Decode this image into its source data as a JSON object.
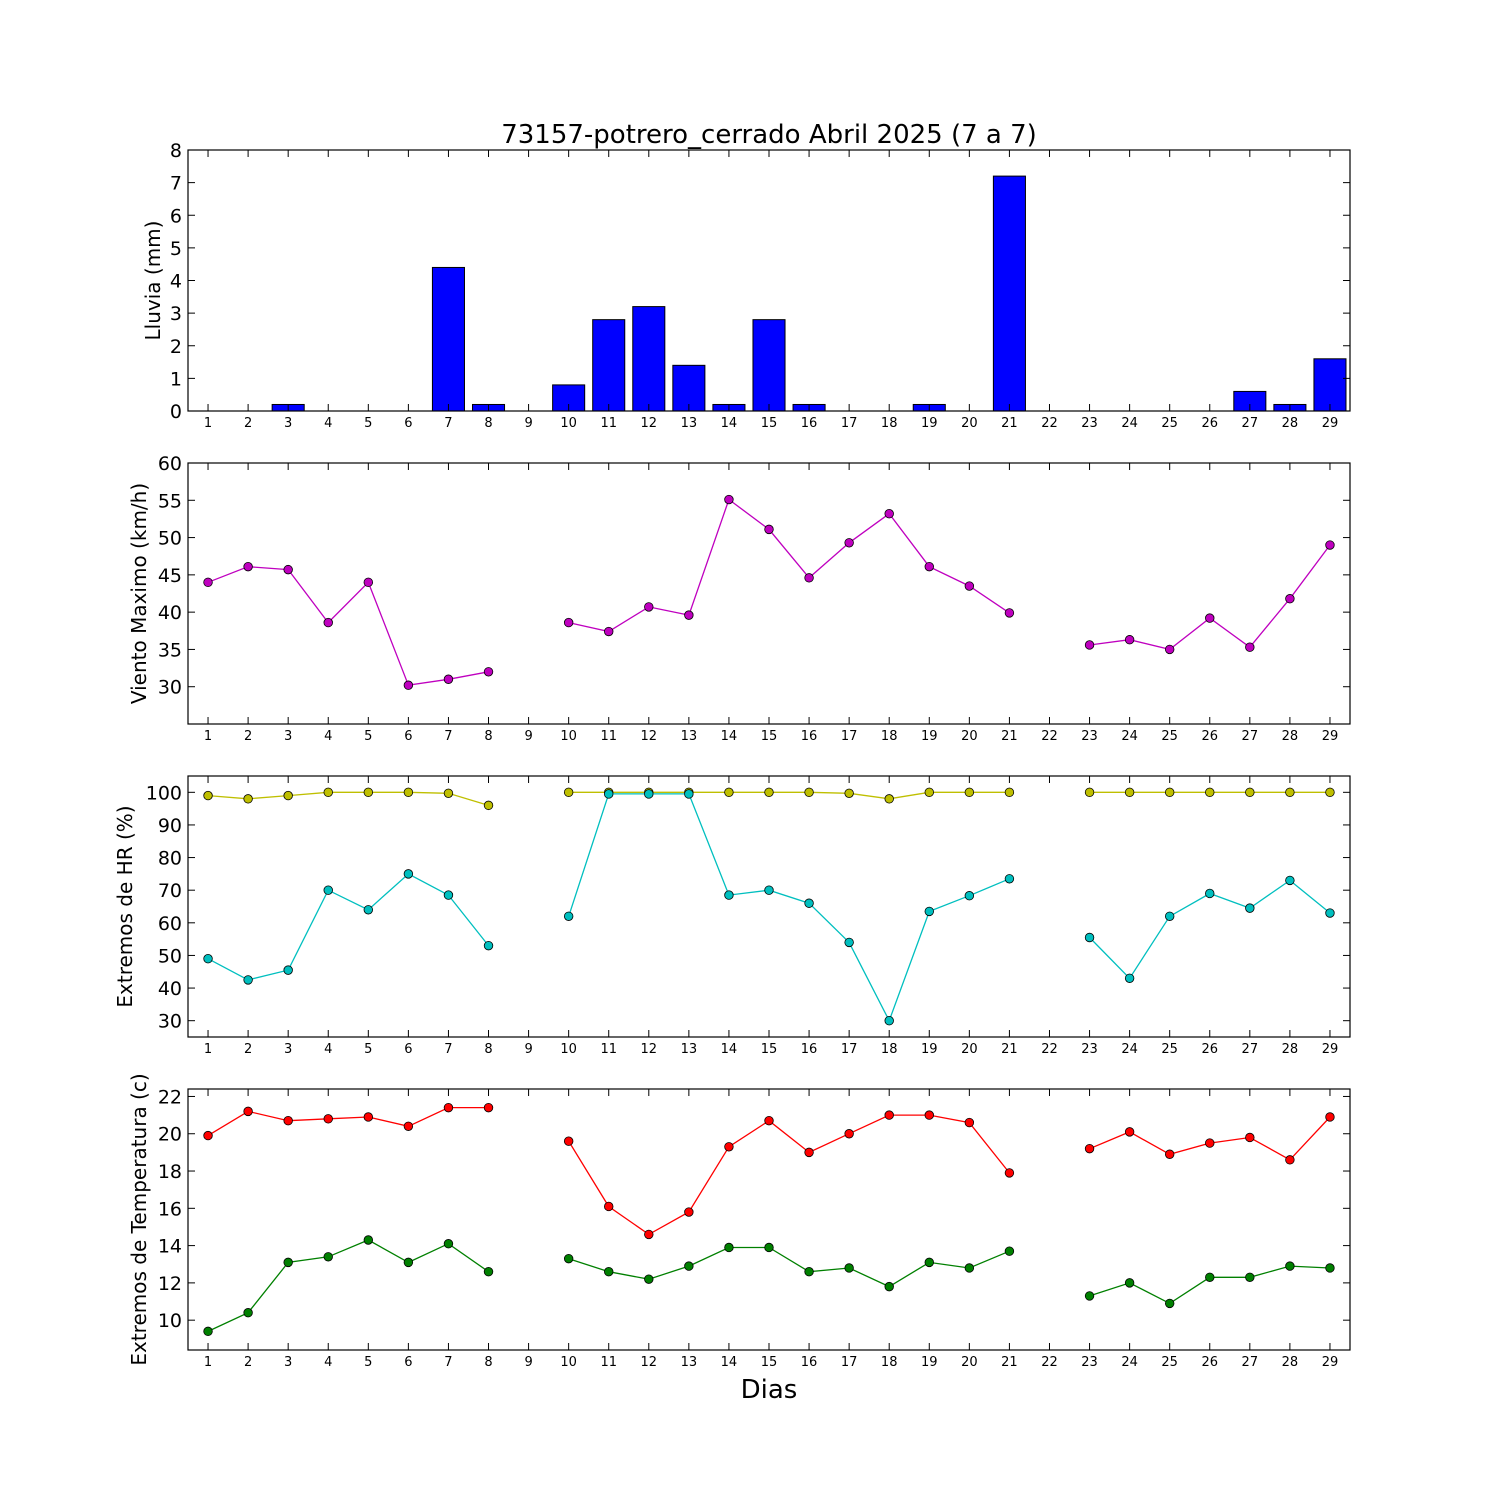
{
  "title": "73157-potrero_cerrado Abril 2025  (7 a 7)",
  "xlabel": "Dias",
  "chart_data": [
    {
      "type": "bar",
      "ylabel": "Lluvia (mm)",
      "x": [
        1,
        2,
        3,
        4,
        5,
        6,
        7,
        8,
        9,
        10,
        11,
        12,
        13,
        14,
        15,
        16,
        17,
        18,
        19,
        20,
        21,
        22,
        23,
        24,
        25,
        26,
        27,
        28,
        29
      ],
      "ylim": [
        0,
        8
      ],
      "yticks": [
        0,
        1,
        2,
        3,
        4,
        5,
        6,
        7,
        8
      ],
      "series": [
        {
          "color": "#0000ff",
          "values": [
            0,
            0,
            0.2,
            0,
            0,
            0,
            4.4,
            0.2,
            0,
            0.8,
            2.8,
            3.2,
            1.4,
            0.2,
            2.8,
            0.2,
            0,
            0,
            0.2,
            0,
            7.2,
            0,
            0,
            0,
            0,
            0,
            0.6,
            0.2,
            1.6
          ]
        }
      ]
    },
    {
      "type": "line",
      "ylabel": "Viento Maximo (km/h)",
      "x": [
        1,
        2,
        3,
        4,
        5,
        6,
        7,
        8,
        9,
        10,
        11,
        12,
        13,
        14,
        15,
        16,
        17,
        18,
        19,
        20,
        21,
        22,
        23,
        24,
        25,
        26,
        27,
        28,
        29
      ],
      "ylim": [
        25,
        60
      ],
      "yticks": [
        30,
        35,
        40,
        45,
        50,
        55,
        60
      ],
      "series": [
        {
          "color": "#bf00bf",
          "values": [
            44.0,
            46.1,
            45.7,
            38.6,
            44.0,
            30.2,
            31.0,
            32.0,
            null,
            38.6,
            37.4,
            40.7,
            39.6,
            55.1,
            51.1,
            44.6,
            49.3,
            53.2,
            46.1,
            43.5,
            39.9,
            null,
            35.6,
            36.3,
            35.0,
            39.2,
            35.3,
            41.8,
            49.0
          ]
        }
      ]
    },
    {
      "type": "line",
      "ylabel": "Extremos de HR (%)",
      "x": [
        1,
        2,
        3,
        4,
        5,
        6,
        7,
        8,
        9,
        10,
        11,
        12,
        13,
        14,
        15,
        16,
        17,
        18,
        19,
        20,
        21,
        22,
        23,
        24,
        25,
        26,
        27,
        28,
        29
      ],
      "ylim": [
        25,
        105
      ],
      "yticks": [
        30,
        40,
        50,
        60,
        70,
        80,
        90,
        100
      ],
      "series": [
        {
          "color": "#bfbf00",
          "values": [
            99,
            98,
            99,
            100,
            100,
            100,
            99.7,
            96,
            null,
            100,
            100,
            100,
            100,
            100,
            100,
            100,
            99.7,
            98,
            100,
            100,
            100,
            null,
            100,
            100,
            100,
            100,
            100,
            100,
            100
          ]
        },
        {
          "color": "#00bfbf",
          "values": [
            49,
            42.5,
            45.5,
            70,
            64,
            75,
            68.5,
            53,
            null,
            62,
            99.5,
            99.5,
            99.5,
            68.5,
            70,
            66,
            54,
            30,
            63.5,
            68.3,
            73.5,
            null,
            55.5,
            43,
            62,
            69,
            64.5,
            73,
            63
          ]
        }
      ]
    },
    {
      "type": "line",
      "ylabel": "Extremos de Temperatura (c)",
      "x": [
        1,
        2,
        3,
        4,
        5,
        6,
        7,
        8,
        9,
        10,
        11,
        12,
        13,
        14,
        15,
        16,
        17,
        18,
        19,
        20,
        21,
        22,
        23,
        24,
        25,
        26,
        27,
        28,
        29
      ],
      "ylim": [
        8.4,
        22.4
      ],
      "yticks": [
        10,
        12,
        14,
        16,
        18,
        20,
        22
      ],
      "series": [
        {
          "color": "#ff0000",
          "values": [
            19.9,
            21.2,
            20.7,
            20.8,
            20.9,
            20.4,
            21.4,
            21.4,
            null,
            19.6,
            16.1,
            14.6,
            15.8,
            19.3,
            20.7,
            19.0,
            20.0,
            21.0,
            21.0,
            20.6,
            17.9,
            null,
            19.2,
            20.1,
            18.9,
            19.5,
            19.8,
            18.6,
            20.9
          ]
        },
        {
          "color": "#008000",
          "values": [
            9.4,
            10.4,
            13.1,
            13.4,
            14.3,
            13.1,
            14.1,
            12.6,
            null,
            13.3,
            12.6,
            12.2,
            12.9,
            13.9,
            13.9,
            12.6,
            12.8,
            11.8,
            13.1,
            12.8,
            13.7,
            null,
            11.3,
            12.0,
            10.9,
            12.3,
            12.3,
            12.9,
            12.8
          ]
        }
      ]
    }
  ]
}
